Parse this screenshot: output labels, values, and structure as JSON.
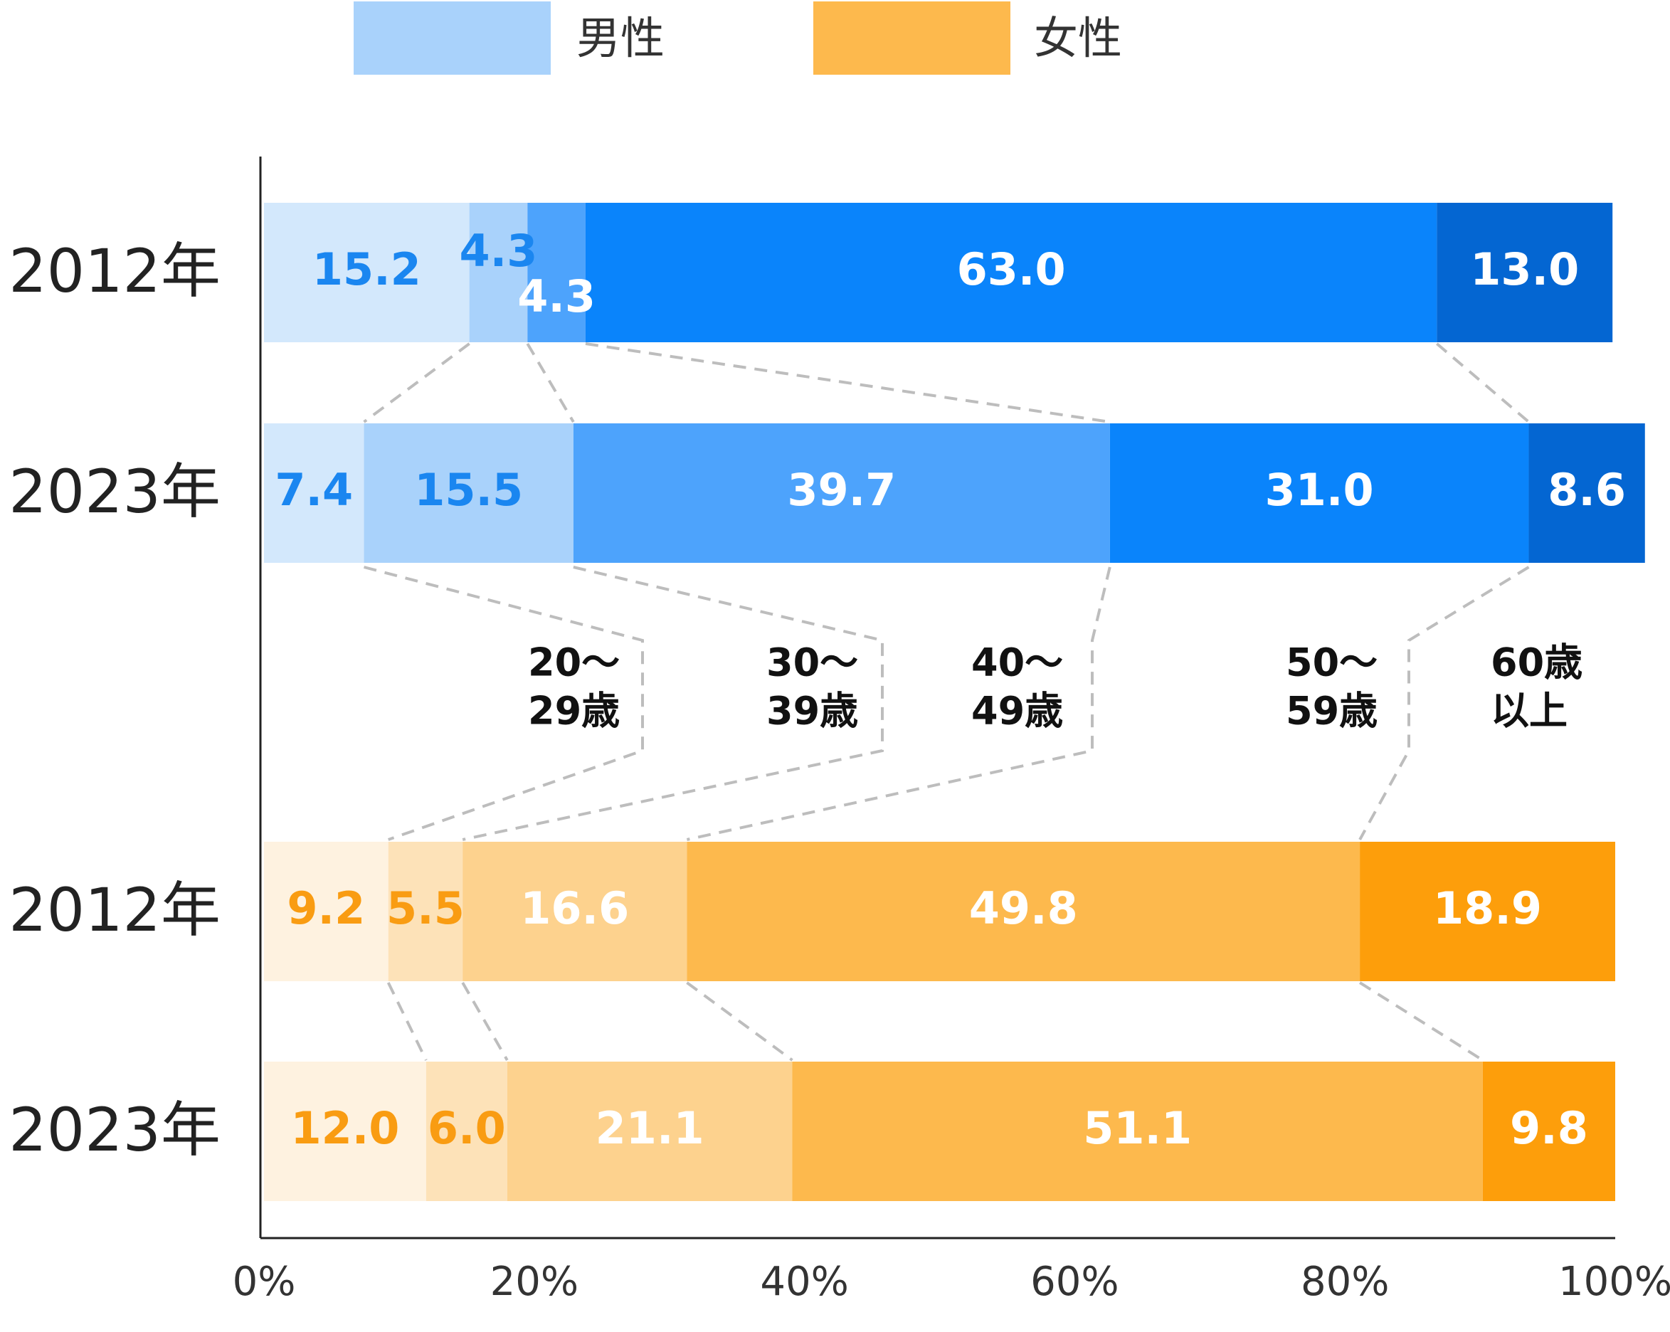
{
  "legend": [
    {
      "label": "男性",
      "color": "#a9d2fb"
    },
    {
      "label": "女性",
      "color": "#fdb94d"
    }
  ],
  "chart_data": {
    "type": "bar",
    "orientation": "horizontal",
    "stacked": true,
    "normalized_percent": true,
    "xlim": [
      0,
      100
    ],
    "x_ticks": [
      0,
      20,
      40,
      60,
      80,
      100
    ],
    "x_tick_labels": [
      "0%",
      "20%",
      "40%",
      "60%",
      "80%",
      "100%"
    ],
    "legend_position": "top",
    "grid": false,
    "age_groups": [
      "20～\n29歳",
      "30～\n39歳",
      "40～\n49歳",
      "50～\n59歳",
      "60歳\n以上"
    ],
    "bars": [
      {
        "gender": "男性",
        "year_label": "2012年",
        "segments": [
          15.2,
          4.3,
          4.3,
          63.0,
          13.0
        ]
      },
      {
        "gender": "男性",
        "year_label": "2023年",
        "segments": [
          7.4,
          15.5,
          39.7,
          31.0,
          8.6
        ]
      },
      {
        "gender": "女性",
        "year_label": "2012年",
        "segments": [
          9.2,
          5.5,
          16.6,
          49.8,
          18.9
        ]
      },
      {
        "gender": "女性",
        "year_label": "2023年",
        "segments": [
          12.0,
          6.0,
          21.1,
          51.1,
          9.8
        ]
      }
    ],
    "colors": {
      "男性": [
        "#d3e8fc",
        "#a9d2fb",
        "#4da3fc",
        "#0a84fb",
        "#0466d2"
      ],
      "女性": [
        "#fef2e0",
        "#fde2b8",
        "#fdd28e",
        "#fdb94d",
        "#fd9e0b"
      ]
    },
    "label_colors": {
      "男性": [
        "#1a86f0",
        "#1a86f0",
        "#ffffff",
        "#ffffff",
        "#ffffff"
      ],
      "女性": [
        "#f99c12",
        "#f99c12",
        "#ffffff",
        "#ffffff",
        "#ffffff"
      ]
    }
  }
}
